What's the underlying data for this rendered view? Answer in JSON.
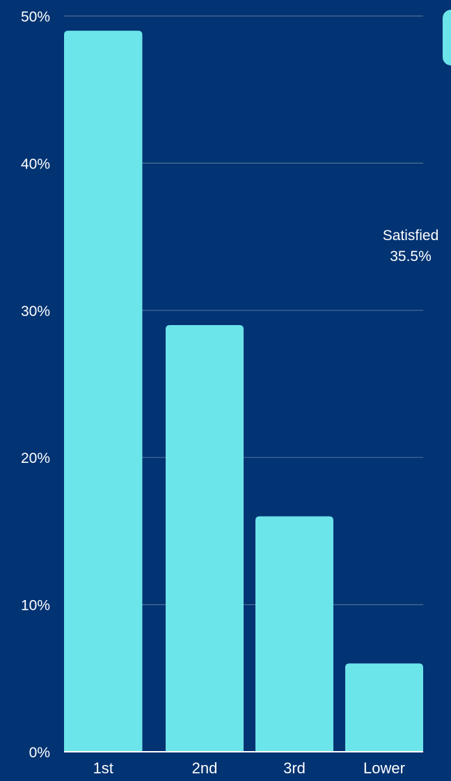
{
  "colors": {
    "background": "#023373",
    "bar": "#6BE4EA",
    "grid": "#4F6F9A",
    "text": "#ffffff"
  },
  "annotation": {
    "label": "Satisfied",
    "value": "35.5%"
  },
  "chart_data": {
    "type": "bar",
    "categories": [
      "1st",
      "2nd",
      "3rd",
      "Lower"
    ],
    "values": [
      49,
      29,
      16,
      6
    ],
    "ylim": [
      0,
      50
    ],
    "yticks": [
      0,
      10,
      20,
      30,
      40,
      50
    ],
    "ytick_labels": [
      "0%",
      "10%",
      "20%",
      "30%",
      "40%",
      "50%"
    ],
    "grid": true
  }
}
